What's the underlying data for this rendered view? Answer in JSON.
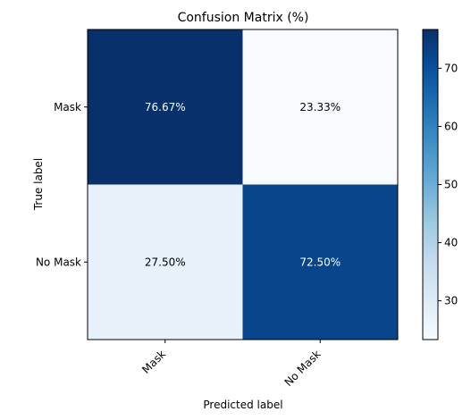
{
  "chart_data": {
    "type": "heatmap",
    "title": "Confusion Matrix (%)",
    "xlabel": "Predicted label",
    "ylabel": "True label",
    "x_categories": [
      "Mask",
      "No Mask"
    ],
    "y_categories": [
      "Mask",
      "No Mask"
    ],
    "values": [
      [
        76.67,
        23.33
      ],
      [
        27.5,
        72.5
      ]
    ],
    "cell_labels": [
      [
        "76.67%",
        "23.33%"
      ],
      [
        "27.50%",
        "72.50%"
      ]
    ],
    "colormap": "Blues",
    "colorbar": {
      "min": 23.33,
      "max": 76.67,
      "ticks": [
        30,
        40,
        50,
        60,
        70
      ],
      "tick_labels": [
        "30",
        "40",
        "50",
        "60",
        "70"
      ]
    },
    "text_colors": {
      "dark_cell": "#ffffff",
      "light_cell": "#000000"
    },
    "grid": false
  }
}
